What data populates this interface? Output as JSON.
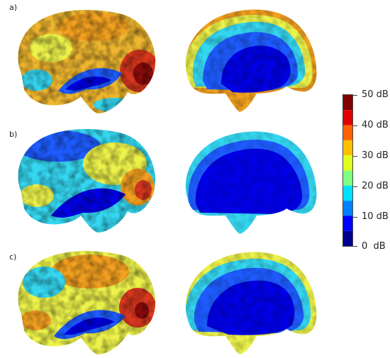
{
  "panels": [
    {
      "label": "a)"
    },
    {
      "label": "b)"
    },
    {
      "label": "c)"
    }
  ],
  "colorbar": {
    "ticks": [
      "50 dB",
      "40 dB",
      "30 dB",
      "20 dB",
      "10 dB",
      "0  dB"
    ],
    "colors": [
      "#00008f",
      "#0000ff",
      "#0080ff",
      "#00e0ff",
      "#7fff7f",
      "#e0ff1f",
      "#ffc000",
      "#ff6000",
      "#e00000",
      "#800000"
    ]
  },
  "colors": {
    "deep_blue": "#0000e6",
    "blue": "#1e5cff",
    "cyan": "#35d6f0",
    "yellow": "#ecf24a",
    "orange": "#f2a020",
    "red": "#d9381e",
    "dark_red": "#8a0c0c"
  }
}
